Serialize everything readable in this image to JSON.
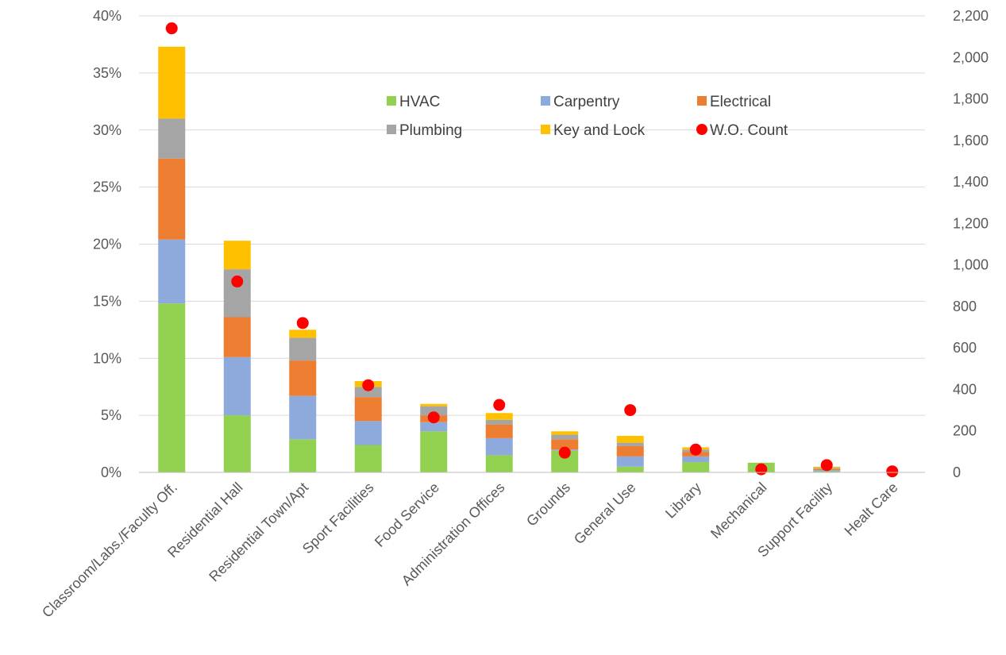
{
  "chart_data": {
    "type": "bar",
    "stacked": true,
    "title": "",
    "xlabel": "",
    "ylabel": "",
    "y2label": "",
    "categories": [
      "Classroom/Labs./Faculty Off.",
      "Residential Hall",
      "Residential Town/Apt",
      "Sport Facilities",
      "Food Service",
      "Administration Offices",
      "Grounds",
      "General Use",
      "Library",
      "Mechanical",
      "Support Facility",
      "Healt Care"
    ],
    "series": [
      {
        "name": "HVAC",
        "color": "#92D050",
        "values": [
          14.8,
          5.0,
          2.9,
          2.4,
          3.6,
          1.5,
          1.9,
          0.5,
          0.9,
          0.85,
          0.1,
          0.0
        ]
      },
      {
        "name": "Carpentry",
        "color": "#8EA9DB",
        "values": [
          5.6,
          5.1,
          3.8,
          2.1,
          0.8,
          1.5,
          0.1,
          0.9,
          0.5,
          0.0,
          0.1,
          0.0
        ]
      },
      {
        "name": "Electrical",
        "color": "#ED7D31",
        "values": [
          7.1,
          3.5,
          3.1,
          2.1,
          0.6,
          1.2,
          0.9,
          0.9,
          0.4,
          0.0,
          0.1,
          0.0
        ]
      },
      {
        "name": "Plumbing",
        "color": "#A5A5A5",
        "values": [
          3.5,
          4.2,
          2.0,
          0.9,
          0.8,
          0.4,
          0.4,
          0.3,
          0.2,
          0.0,
          0.1,
          0.0
        ]
      },
      {
        "name": "Key and Lock",
        "color": "#FFC000",
        "values": [
          6.3,
          2.5,
          0.7,
          0.5,
          0.2,
          0.6,
          0.3,
          0.6,
          0.2,
          0.0,
          0.1,
          0.0
        ]
      }
    ],
    "scatter_series": {
      "name": "W.O. Count",
      "color": "#FF0000",
      "axis": "right",
      "values": [
        2140,
        920,
        720,
        420,
        265,
        325,
        95,
        300,
        110,
        15,
        35,
        5
      ]
    },
    "y_ticks": [
      "0%",
      "5%",
      "10%",
      "15%",
      "20%",
      "25%",
      "30%",
      "35%",
      "40%"
    ],
    "y2_ticks": [
      "0",
      "200",
      "400",
      "600",
      "800",
      "1,000",
      "1,200",
      "1,400",
      "1,600",
      "1,800",
      "2,000",
      "2,200"
    ],
    "ylim": [
      0,
      40
    ],
    "y2lim": [
      0,
      2200
    ],
    "grid": true,
    "legend_position": "top-center"
  }
}
